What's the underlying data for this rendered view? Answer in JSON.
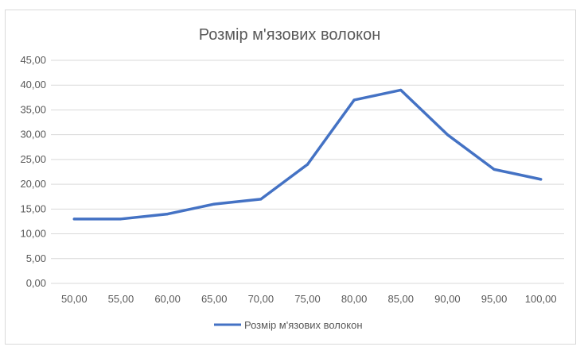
{
  "chart_data": {
    "type": "line",
    "title": "Розмір м'язових волокон",
    "xlabel": "",
    "ylabel": "",
    "categories": [
      "50,00",
      "55,00",
      "60,00",
      "65,00",
      "70,00",
      "75,00",
      "80,00",
      "85,00",
      "90,00",
      "95,00",
      "100,00"
    ],
    "series": [
      {
        "name": "Розмір м'язових волокон",
        "values": [
          13,
          13,
          14,
          16,
          17,
          24,
          37,
          39,
          30,
          23,
          21
        ],
        "color": "#4472c4"
      }
    ],
    "ylim": [
      0,
      45
    ],
    "yticks": [
      "0,00",
      "5,00",
      "10,00",
      "15,00",
      "20,00",
      "25,00",
      "30,00",
      "35,00",
      "40,00",
      "45,00"
    ],
    "grid": true,
    "legend_position": "bottom",
    "colors": {
      "series": "#4472c4",
      "grid": "#d9d9d9",
      "text": "#595959"
    }
  }
}
